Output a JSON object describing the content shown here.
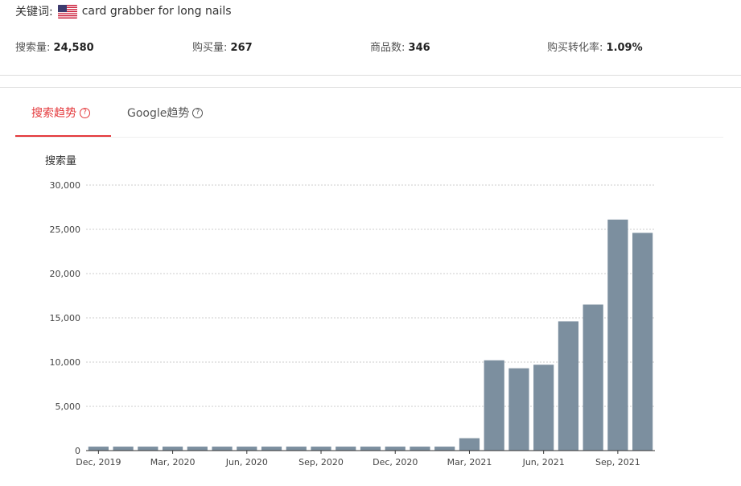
{
  "keyword": {
    "label": "关键词:",
    "value": "card grabber for long nails",
    "flag_icon": "us-flag-icon"
  },
  "stats": {
    "search_volume": {
      "label": "搜索量:",
      "value": "24,580"
    },
    "purchases": {
      "label": "购买量:",
      "value": "267"
    },
    "products": {
      "label": "商品数:",
      "value": "346"
    },
    "conversion": {
      "label": "购买转化率:",
      "value": "1.09%"
    }
  },
  "tabs": [
    {
      "label": "搜索趋势",
      "active": true,
      "icon": "help-icon"
    },
    {
      "label": "Google趋势",
      "active": false,
      "icon": "help-icon"
    }
  ],
  "colors": {
    "accent": "#e4393c",
    "bar": "#7c8f9f",
    "grid": "#cccccc"
  },
  "chart_data": {
    "type": "bar",
    "ylabel": "搜索量",
    "ylim": [
      0,
      30000
    ],
    "yticks": [
      0,
      5000,
      10000,
      15000,
      20000,
      25000,
      30000
    ],
    "ytick_labels": [
      "0",
      "5,000",
      "10,000",
      "15,000",
      "20,000",
      "25,000",
      "30,000"
    ],
    "grid": true,
    "categories": [
      "Dec, 2019",
      "Jan, 2020",
      "Feb, 2020",
      "Mar, 2020",
      "Apr, 2020",
      "May, 2020",
      "Jun, 2020",
      "Jul, 2020",
      "Aug, 2020",
      "Sep, 2020",
      "Oct, 2020",
      "Nov, 2020",
      "Dec, 2020",
      "Jan, 2021",
      "Feb, 2021",
      "Mar, 2021",
      "Apr, 2021",
      "May, 2021",
      "Jun, 2021",
      "Jul, 2021",
      "Aug, 2021",
      "Sep, 2021",
      "Oct, 2021"
    ],
    "values": [
      450,
      450,
      450,
      450,
      450,
      450,
      450,
      450,
      450,
      450,
      450,
      450,
      450,
      450,
      450,
      1400,
      10200,
      9300,
      9700,
      14600,
      16500,
      26100,
      24600
    ],
    "xtick_labels": [
      {
        "index": 0,
        "label": "Dec, 2019"
      },
      {
        "index": 3,
        "label": "Mar, 2020"
      },
      {
        "index": 6,
        "label": "Jun, 2020"
      },
      {
        "index": 9,
        "label": "Sep, 2020"
      },
      {
        "index": 12,
        "label": "Dec, 2020"
      },
      {
        "index": 15,
        "label": "Mar, 2021"
      },
      {
        "index": 18,
        "label": "Jun, 2021"
      },
      {
        "index": 21,
        "label": "Sep, 2021"
      }
    ]
  }
}
